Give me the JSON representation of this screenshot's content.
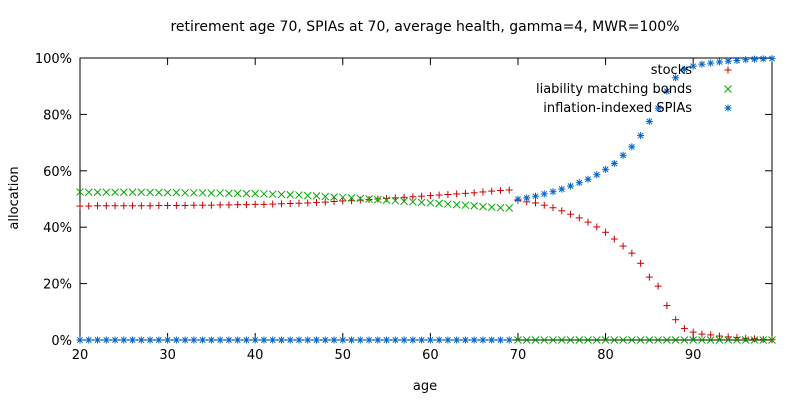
{
  "chart_data": {
    "type": "scatter",
    "title": "retirement age 70, SPIAs at 70, average health, gamma=4, MWR=100%",
    "xlabel": "age",
    "ylabel": "allocation",
    "xlim": [
      20,
      99
    ],
    "ylim": [
      0,
      100
    ],
    "x_ticks": [
      "20",
      "30",
      "40",
      "50",
      "60",
      "70",
      "80",
      "90"
    ],
    "y_ticks": [
      "0%",
      "20%",
      "40%",
      "60%",
      "80%",
      "100%"
    ],
    "grid": false,
    "legend_position": "top-right",
    "series": [
      {
        "name": "stocks",
        "marker": "plus",
        "color": "#cc0000",
        "points": [
          [
            20,
            47.5
          ],
          [
            21,
            47.5
          ],
          [
            22,
            47.6
          ],
          [
            23,
            47.6
          ],
          [
            24,
            47.6
          ],
          [
            25,
            47.6
          ],
          [
            26,
            47.6
          ],
          [
            27,
            47.6
          ],
          [
            28,
            47.6
          ],
          [
            29,
            47.7
          ],
          [
            30,
            47.7
          ],
          [
            31,
            47.7
          ],
          [
            32,
            47.7
          ],
          [
            33,
            47.8
          ],
          [
            34,
            47.8
          ],
          [
            35,
            47.8
          ],
          [
            36,
            47.9
          ],
          [
            37,
            47.9
          ],
          [
            38,
            48.0
          ],
          [
            39,
            48.0
          ],
          [
            40,
            48.1
          ],
          [
            41,
            48.1
          ],
          [
            42,
            48.2
          ],
          [
            43,
            48.3
          ],
          [
            44,
            48.4
          ],
          [
            45,
            48.5
          ],
          [
            46,
            48.6
          ],
          [
            47,
            48.8
          ],
          [
            48,
            48.9
          ],
          [
            49,
            49.1
          ],
          [
            50,
            49.3
          ],
          [
            51,
            49.4
          ],
          [
            52,
            49.6
          ],
          [
            53,
            49.8
          ],
          [
            54,
            50.0
          ],
          [
            55,
            50.2
          ],
          [
            56,
            50.4
          ],
          [
            57,
            50.6
          ],
          [
            58,
            50.8
          ],
          [
            59,
            51.0
          ],
          [
            60,
            51.2
          ],
          [
            61,
            51.4
          ],
          [
            62,
            51.6
          ],
          [
            63,
            51.8
          ],
          [
            64,
            52.0
          ],
          [
            65,
            52.2
          ],
          [
            66,
            52.5
          ],
          [
            67,
            52.8
          ],
          [
            68,
            53.0
          ],
          [
            69,
            53.2
          ],
          [
            70,
            49.5
          ],
          [
            71,
            49.0
          ],
          [
            72,
            48.6
          ],
          [
            73,
            47.8
          ],
          [
            74,
            46.9
          ],
          [
            75,
            45.8
          ],
          [
            76,
            44.6
          ],
          [
            77,
            43.3
          ],
          [
            78,
            41.8
          ],
          [
            79,
            40.1
          ],
          [
            80,
            38.2
          ],
          [
            81,
            35.8
          ],
          [
            82,
            33.3
          ],
          [
            83,
            30.8
          ],
          [
            84,
            27.2
          ],
          [
            85,
            22.3
          ],
          [
            86,
            19.1
          ],
          [
            87,
            12.2
          ],
          [
            88,
            7.2
          ],
          [
            89,
            4.1
          ],
          [
            90,
            2.8
          ],
          [
            91,
            2.1
          ],
          [
            92,
            1.8
          ],
          [
            93,
            1.4
          ],
          [
            94,
            1.1
          ],
          [
            95,
            0.9
          ],
          [
            96,
            0.6
          ],
          [
            97,
            0.4
          ],
          [
            98,
            0.2
          ],
          [
            99,
            0.1
          ]
        ]
      },
      {
        "name": "liability matching bonds",
        "marker": "cross",
        "color": "#00aa00",
        "points": [
          [
            20,
            52.5
          ],
          [
            21,
            52.4
          ],
          [
            22,
            52.4
          ],
          [
            23,
            52.4
          ],
          [
            24,
            52.4
          ],
          [
            25,
            52.4
          ],
          [
            26,
            52.4
          ],
          [
            27,
            52.4
          ],
          [
            28,
            52.3
          ],
          [
            29,
            52.3
          ],
          [
            30,
            52.3
          ],
          [
            31,
            52.3
          ],
          [
            32,
            52.2
          ],
          [
            33,
            52.2
          ],
          [
            34,
            52.2
          ],
          [
            35,
            52.1
          ],
          [
            36,
            52.1
          ],
          [
            37,
            52.0
          ],
          [
            38,
            52.0
          ],
          [
            39,
            51.9
          ],
          [
            40,
            51.9
          ],
          [
            41,
            51.8
          ],
          [
            42,
            51.7
          ],
          [
            43,
            51.6
          ],
          [
            44,
            51.5
          ],
          [
            45,
            51.4
          ],
          [
            46,
            51.2
          ],
          [
            47,
            51.1
          ],
          [
            48,
            50.9
          ],
          [
            49,
            50.7
          ],
          [
            50,
            50.6
          ],
          [
            51,
            50.4
          ],
          [
            52,
            50.2
          ],
          [
            53,
            50.0
          ],
          [
            54,
            49.8
          ],
          [
            55,
            49.6
          ],
          [
            56,
            49.4
          ],
          [
            57,
            49.2
          ],
          [
            58,
            49.0
          ],
          [
            59,
            48.8
          ],
          [
            60,
            48.6
          ],
          [
            61,
            48.4
          ],
          [
            62,
            48.2
          ],
          [
            63,
            48.0
          ],
          [
            64,
            47.8
          ],
          [
            65,
            47.6
          ],
          [
            66,
            47.3
          ],
          [
            67,
            47.1
          ],
          [
            68,
            46.9
          ],
          [
            69,
            46.8
          ],
          [
            70,
            0
          ],
          [
            71,
            0
          ],
          [
            72,
            0
          ],
          [
            73,
            0
          ],
          [
            74,
            0
          ],
          [
            75,
            0
          ],
          [
            76,
            0
          ],
          [
            77,
            0
          ],
          [
            78,
            0
          ],
          [
            79,
            0
          ],
          [
            80,
            0
          ],
          [
            81,
            0
          ],
          [
            82,
            0
          ],
          [
            83,
            0
          ],
          [
            84,
            0
          ],
          [
            85,
            0
          ],
          [
            86,
            0
          ],
          [
            87,
            0
          ],
          [
            88,
            0
          ],
          [
            89,
            0
          ],
          [
            90,
            0
          ],
          [
            91,
            0
          ],
          [
            92,
            0
          ],
          [
            93,
            0
          ],
          [
            94,
            0
          ],
          [
            95,
            0
          ],
          [
            96,
            0
          ],
          [
            97,
            0
          ],
          [
            98,
            0
          ],
          [
            99,
            0
          ]
        ]
      },
      {
        "name": "inflation-indexed SPIAs",
        "marker": "star",
        "color": "#0066cc",
        "points": [
          [
            20,
            0
          ],
          [
            21,
            0
          ],
          [
            22,
            0
          ],
          [
            23,
            0
          ],
          [
            24,
            0
          ],
          [
            25,
            0
          ],
          [
            26,
            0
          ],
          [
            27,
            0
          ],
          [
            28,
            0
          ],
          [
            29,
            0
          ],
          [
            30,
            0
          ],
          [
            31,
            0
          ],
          [
            32,
            0
          ],
          [
            33,
            0
          ],
          [
            34,
            0
          ],
          [
            35,
            0
          ],
          [
            36,
            0
          ],
          [
            37,
            0
          ],
          [
            38,
            0
          ],
          [
            39,
            0
          ],
          [
            40,
            0
          ],
          [
            41,
            0
          ],
          [
            42,
            0
          ],
          [
            43,
            0
          ],
          [
            44,
            0
          ],
          [
            45,
            0
          ],
          [
            46,
            0
          ],
          [
            47,
            0
          ],
          [
            48,
            0
          ],
          [
            49,
            0
          ],
          [
            50,
            0
          ],
          [
            51,
            0
          ],
          [
            52,
            0
          ],
          [
            53,
            0
          ],
          [
            54,
            0
          ],
          [
            55,
            0
          ],
          [
            56,
            0
          ],
          [
            57,
            0
          ],
          [
            58,
            0
          ],
          [
            59,
            0
          ],
          [
            60,
            0
          ],
          [
            61,
            0
          ],
          [
            62,
            0
          ],
          [
            63,
            0
          ],
          [
            64,
            0
          ],
          [
            65,
            0
          ],
          [
            66,
            0
          ],
          [
            67,
            0
          ],
          [
            68,
            0
          ],
          [
            69,
            0
          ],
          [
            70,
            49.9
          ],
          [
            71,
            50.4
          ],
          [
            72,
            51.0
          ],
          [
            73,
            51.8
          ],
          [
            74,
            52.6
          ],
          [
            75,
            53.5
          ],
          [
            76,
            54.6
          ],
          [
            77,
            55.8
          ],
          [
            78,
            57.0
          ],
          [
            79,
            58.6
          ],
          [
            80,
            60.5
          ],
          [
            81,
            62.6
          ],
          [
            82,
            65.5
          ],
          [
            83,
            68.5
          ],
          [
            84,
            72.5
          ],
          [
            85,
            77.5
          ],
          [
            86,
            82.2
          ],
          [
            87,
            88.2
          ],
          [
            88,
            93.0
          ],
          [
            89,
            96.0
          ],
          [
            90,
            97.1
          ],
          [
            91,
            97.8
          ],
          [
            92,
            98.2
          ],
          [
            93,
            98.6
          ],
          [
            94,
            98.9
          ],
          [
            95,
            99.1
          ],
          [
            96,
            99.4
          ],
          [
            97,
            99.6
          ],
          [
            98,
            99.7
          ],
          [
            99,
            99.8
          ]
        ]
      }
    ]
  }
}
